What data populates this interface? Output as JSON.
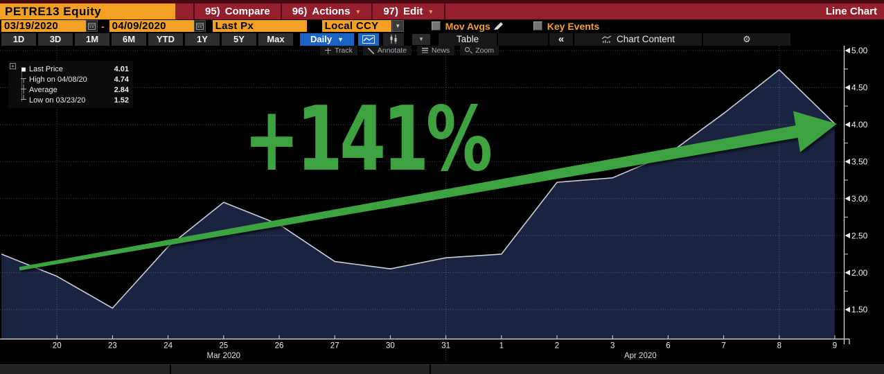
{
  "top_bar": {
    "security": "PETRE13 Equity",
    "menu_items": [
      {
        "number": "95)",
        "label": "Compare",
        "dropdown": false
      },
      {
        "number": "96)",
        "label": "Actions",
        "dropdown": true
      },
      {
        "number": "97)",
        "label": "Edit",
        "dropdown": true
      }
    ],
    "view_label": "Line Chart"
  },
  "settings_bar": {
    "date_from": "03/19/2020",
    "range_separator": "-",
    "date_to": "04/09/2020",
    "price_field": "Last Px",
    "currency": "Local CCY",
    "mov_avgs_label": "Mov Avgs",
    "key_events_label": "Key Events"
  },
  "period_bar": {
    "periods": [
      "1D",
      "3D",
      "1M",
      "6M",
      "YTD",
      "1Y",
      "5Y",
      "Max"
    ],
    "frequency": "Daily",
    "table_label": "Table",
    "chart_content_label": "Chart Content"
  },
  "chart_toolbar": {
    "track": "Track",
    "annotate": "Annotate",
    "news": "News",
    "zoom": "Zoom"
  },
  "legend": {
    "rows": [
      {
        "glyph": "■",
        "label": "Last Price",
        "value": "4.01"
      },
      {
        "glyph": "┬",
        "label": "High on 04/08/20",
        "value": "4.74"
      },
      {
        "glyph": "┼",
        "label": "Average",
        "value": "2.84"
      },
      {
        "glyph": "┴",
        "label": "Low on 03/23/20",
        "value": "1.52"
      }
    ]
  },
  "overlay": {
    "gain_text": "+141%",
    "green": "#3da23f"
  },
  "icons": {
    "dropdown": "▼",
    "collapse": "«",
    "gear": "⚙",
    "plus": "+"
  },
  "chart_data": {
    "type": "area",
    "series_name": "Last Price",
    "x": [
      "03/19",
      "03/20",
      "03/23",
      "03/24",
      "03/25",
      "03/26",
      "03/27",
      "03/30",
      "03/31",
      "04/01",
      "04/02",
      "04/03",
      "04/06",
      "04/07",
      "04/08",
      "04/09"
    ],
    "x_tick_labels": [
      "",
      "20",
      "23",
      "24",
      "25",
      "26",
      "27",
      "30",
      "31",
      "1",
      "2",
      "3",
      "6",
      "7",
      "8",
      "9"
    ],
    "values": [
      2.25,
      1.95,
      1.52,
      2.35,
      2.95,
      2.65,
      2.15,
      2.05,
      2.2,
      2.25,
      3.22,
      3.28,
      3.6,
      4.15,
      4.74,
      4.01
    ],
    "y_ticks": [
      1.5,
      2.0,
      2.5,
      3.0,
      3.5,
      4.0,
      4.5,
      5.0
    ],
    "ylim": [
      1.1,
      5.07
    ],
    "last": 4.01,
    "high": 4.74,
    "low": 1.52,
    "average": 2.84,
    "month_labels": [
      {
        "text": "Mar 2020",
        "index": 4.0
      },
      {
        "text": "Apr 2020",
        "index": 11.5
      }
    ],
    "v_gridline_indices": [
      1,
      8,
      14
    ],
    "grid": "dotted",
    "legend_position": "top-left",
    "line_color": "#c9ced8",
    "fill_color": "#1a2440"
  }
}
